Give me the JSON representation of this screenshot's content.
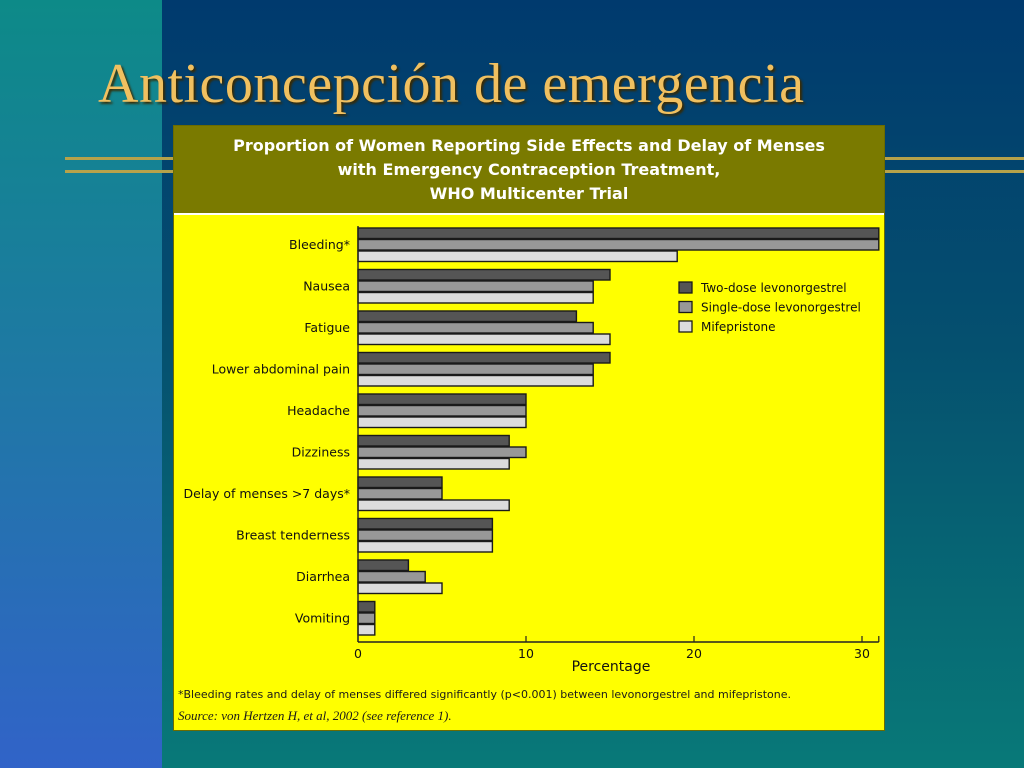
{
  "slide": {
    "title": "Anticoncepción de emergencia"
  },
  "chart": {
    "title_lines": [
      "Proportion of Women Reporting Side Effects and Delay of Menses",
      "with Emergency Contraception Treatment,",
      "WHO Multicenter Trial"
    ],
    "footnote": "*Bleeding rates and delay of menses differed significantly (p<0.001) between levonorgestrel and mifepristone.",
    "source": "Source: von Hertzen H, et al, 2002 (see reference 1)."
  },
  "colors": {
    "two_dose": "#555555",
    "single_dose": "#989898",
    "mifepristone": "#dcdcdc",
    "plot_bg": "#ffff00",
    "header_bg": "#7a7a00"
  },
  "chart_data": {
    "type": "bar",
    "orientation": "horizontal",
    "title": "Proportion of Women Reporting Side Effects and Delay of Menses with Emergency Contraception Treatment, WHO Multicenter Trial",
    "xlabel": "Percentage",
    "ylabel": "",
    "xlim": [
      0,
      31
    ],
    "xticks": [
      0,
      10,
      20,
      30
    ],
    "grid": false,
    "legend_position": "right",
    "categories": [
      "Bleeding*",
      "Nausea",
      "Fatigue",
      "Lower abdominal pain",
      "Headache",
      "Dizziness",
      "Delay of menses >7 days*",
      "Breast tenderness",
      "Diarrhea",
      "Vomiting"
    ],
    "series": [
      {
        "name": "Two-dose levonorgestrel",
        "values": [
          31,
          15,
          13,
          15,
          10,
          9,
          5,
          8,
          3,
          1
        ]
      },
      {
        "name": "Single-dose levonorgestrel",
        "values": [
          31,
          14,
          14,
          14,
          10,
          10,
          5,
          8,
          4,
          1
        ]
      },
      {
        "name": "Mifepristone",
        "values": [
          19,
          14,
          15,
          14,
          10,
          9,
          9,
          8,
          5,
          1
        ]
      }
    ]
  }
}
